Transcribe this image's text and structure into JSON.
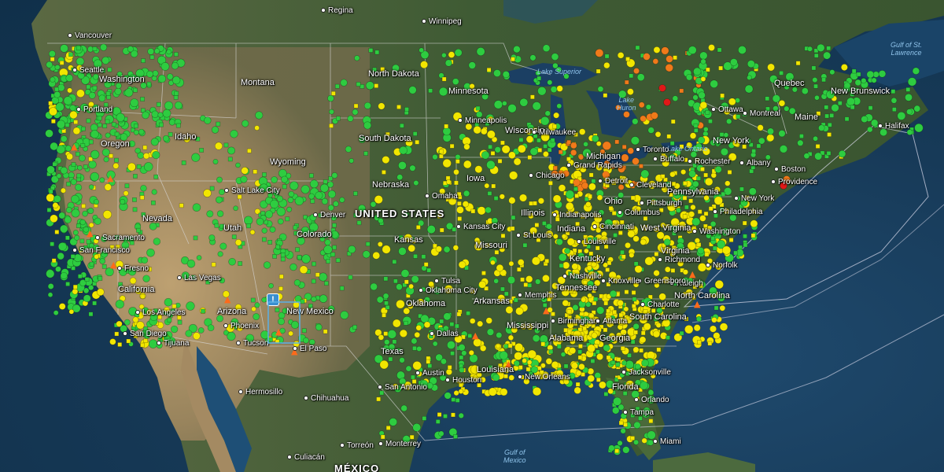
{
  "map": {
    "country_labels": [
      {
        "id": "us",
        "text": "UNITED STATES"
      },
      {
        "id": "mx",
        "text": "MÉXICO"
      }
    ],
    "water_labels": [
      {
        "id": "superior",
        "text": "Lake Superior"
      },
      {
        "id": "huron",
        "text": "Lake\nHuron"
      },
      {
        "id": "ontario",
        "text": "Lake Ontario"
      },
      {
        "id": "gulf_mexico",
        "text": "Gulf of\nMexico"
      },
      {
        "id": "gulf_stlawrence",
        "text": "Gulf of St.\nLawrence"
      }
    ],
    "state_labels": [
      "Washington",
      "Montana",
      "North Dakota",
      "Minnesota",
      "Oregon",
      "Idaho",
      "South Dakota",
      "Wisconsin",
      "Michigan",
      "Wyoming",
      "Iowa",
      "Nebraska",
      "Nevada",
      "Utah",
      "Colorado",
      "Illinois",
      "Indiana",
      "Ohio",
      "Pennsylvania",
      "New York",
      "Kansas",
      "Missouri",
      "Kentucky",
      "West Virginia",
      "Virginia",
      "California",
      "Arizona",
      "New Mexico",
      "Oklahoma",
      "Arkansas",
      "Tennessee",
      "North Carolina",
      "South Carolina",
      "Mississippi",
      "Alabama",
      "Georgia",
      "Texas",
      "Louisiana",
      "Florida",
      "Maine",
      "New Brunswick",
      "Quebec"
    ],
    "city_labels": [
      "Vancouver",
      "Seattle",
      "Portland",
      "Regina",
      "Winnipeg",
      "Minneapolis",
      "Milwaukee",
      "Chicago",
      "Grand Rapids",
      "Detroit",
      "Toronto",
      "Buffalo",
      "Rochester",
      "Ottawa",
      "Montreal",
      "Albany",
      "Boston",
      "Providence",
      "Halifax",
      "Cleveland",
      "Pittsburgh",
      "Philadelphia",
      "New York",
      "Washington",
      "Richmond",
      "Norfolk",
      "Raleigh",
      "Greensboro",
      "Charlotte",
      "Columbus",
      "Cincinnati",
      "Louisville",
      "Indianapolis",
      "Nashville",
      "Knoxville",
      "Memphis",
      "Birmingham",
      "Atlanta",
      "Jacksonville",
      "Orlando",
      "Tampa",
      "Miami",
      "New Orleans",
      "Houston",
      "San Antonio",
      "Austin",
      "Dallas",
      "Oklahoma City",
      "Tulsa",
      "Kansas City",
      "St Louis",
      "Omaha",
      "Denver",
      "Salt Lake City",
      "Las Vegas",
      "Phoenix",
      "Tucson",
      "El Paso",
      "Los Angeles",
      "San Diego",
      "Tijuana",
      "Fresno",
      "San Francisco",
      "Sacramento",
      "Hermosillo",
      "Chihuahua",
      "Culiacán",
      "Torreón",
      "Monterrey"
    ],
    "colors": {
      "green": "#2ecc40",
      "yellow": "#f2e600",
      "orange": "#f07a1a",
      "red": "#e01818",
      "ocean": "#1a4468",
      "land_west": "#9d8a66",
      "land_east": "#4a6a3a"
    },
    "icons": [
      "fire-icon",
      "alert-icon"
    ]
  }
}
